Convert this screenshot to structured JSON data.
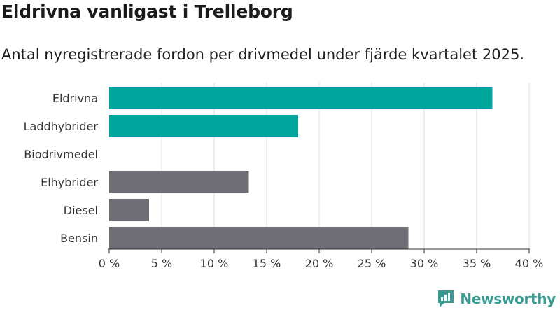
{
  "title": "Eldrivna vanligast i Trelleborg",
  "subtitle": "Antal nyregistrerade fordon per drivmedel under fjärde kvartalet 2025.",
  "brand": {
    "name": "Newsworthy",
    "color": "#3a9a92"
  },
  "chart_data": {
    "type": "bar",
    "orientation": "horizontal",
    "title": "Eldrivna vanligast i Trelleborg",
    "subtitle": "Antal nyregistrerade fordon per drivmedel under fjärde kvartalet 2025.",
    "xlabel": "",
    "ylabel": "",
    "xlim": [
      0,
      40
    ],
    "ticks": [
      0,
      5,
      10,
      15,
      20,
      25,
      30,
      35,
      40
    ],
    "tick_labels": [
      "0 %",
      "5 %",
      "10 %",
      "15 %",
      "20 %",
      "25 %",
      "30 %",
      "35 %",
      "40 %"
    ],
    "grid": true,
    "categories": [
      "Eldrivna",
      "Laddhybrider",
      "Biodrivmedel",
      "Elhybrider",
      "Diesel",
      "Bensin"
    ],
    "values": [
      36.5,
      18,
      0,
      13.3,
      3.8,
      28.5
    ],
    "bar_colors": [
      "#00a59b",
      "#00a59b",
      "#6e6e74",
      "#6e6e74",
      "#6e6e74",
      "#6e6e74"
    ]
  }
}
